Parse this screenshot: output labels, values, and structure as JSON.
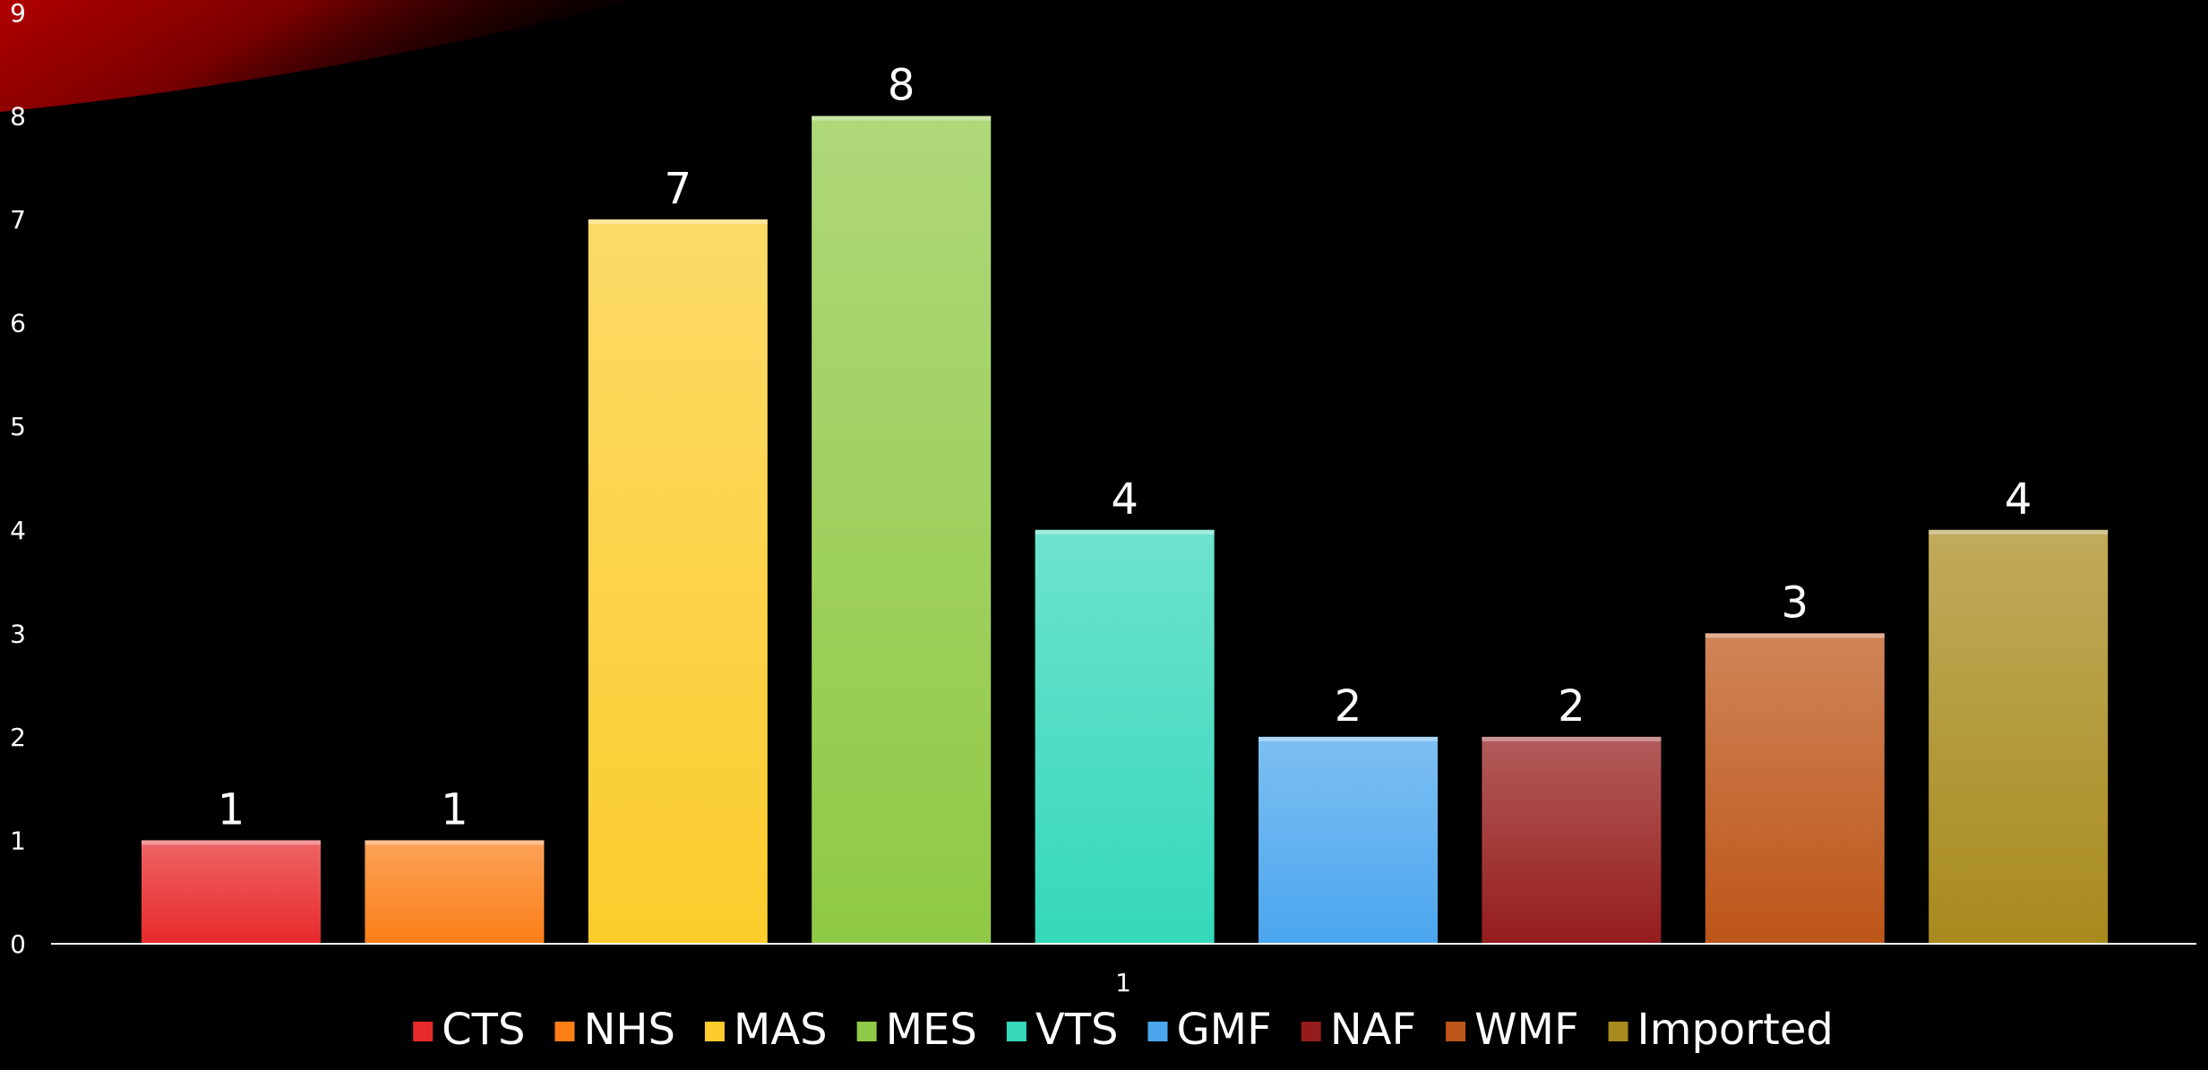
{
  "chart_data": {
    "type": "bar",
    "categories": [
      "1"
    ],
    "series": [
      {
        "name": "CTS",
        "values": [
          1
        ],
        "color": "#e8292b"
      },
      {
        "name": "NHS",
        "values": [
          1
        ],
        "color": "#fb7e17"
      },
      {
        "name": "MAS",
        "values": [
          7
        ],
        "color": "#fbcc2c"
      },
      {
        "name": "MES",
        "values": [
          8
        ],
        "color": "#90c945"
      },
      {
        "name": "VTS",
        "values": [
          4
        ],
        "color": "#35d8ba"
      },
      {
        "name": "GMF",
        "values": [
          2
        ],
        "color": "#4ba6ee"
      },
      {
        "name": "NAF",
        "values": [
          2
        ],
        "color": "#951c1c"
      },
      {
        "name": "WMF",
        "values": [
          3
        ],
        "color": "#bd5518"
      },
      {
        "name": "Imported",
        "values": [
          4
        ],
        "color": "#a88a1d"
      }
    ],
    "ylim": [
      0,
      9
    ],
    "yticks": [
      "0",
      "1",
      "2",
      "3",
      "4",
      "5",
      "6",
      "7",
      "8",
      "9"
    ],
    "grid": false,
    "legend_position": "bottom",
    "data_labels": true
  }
}
